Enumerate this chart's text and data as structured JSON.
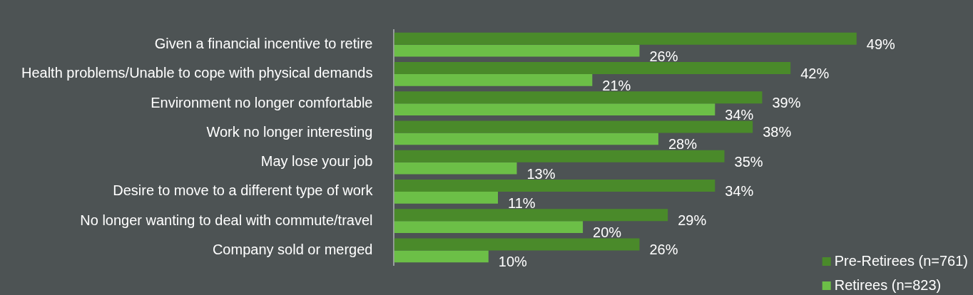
{
  "chart_data": {
    "type": "bar",
    "orientation": "horizontal",
    "categories": [
      "Given a financial incentive to retire",
      "Health problems/Unable to cope with physical demands",
      "Environment no longer comfortable",
      "Work no longer interesting",
      "May lose your job",
      "Desire to move to a different type of work",
      "No longer wanting to deal with commute/travel",
      "Company sold or merged"
    ],
    "series": [
      {
        "name": "Pre-Retirees (n=761)",
        "color": "#4a8a2a",
        "values": [
          49,
          42,
          39,
          38,
          35,
          34,
          29,
          26
        ],
        "value_labels": [
          "49%",
          "42%",
          "39%",
          "38%",
          "35%",
          "34%",
          "29%",
          "26%"
        ]
      },
      {
        "name": "Retirees (n=823)",
        "color": "#6cbf47",
        "values": [
          26,
          21,
          34,
          28,
          13,
          11,
          20,
          10
        ],
        "value_labels": [
          "26%",
          "21%",
          "34%",
          "28%",
          "13%",
          "11%",
          "20%",
          "10%"
        ]
      }
    ],
    "tick_labels": "y",
    "legend": "bottom right"
  }
}
